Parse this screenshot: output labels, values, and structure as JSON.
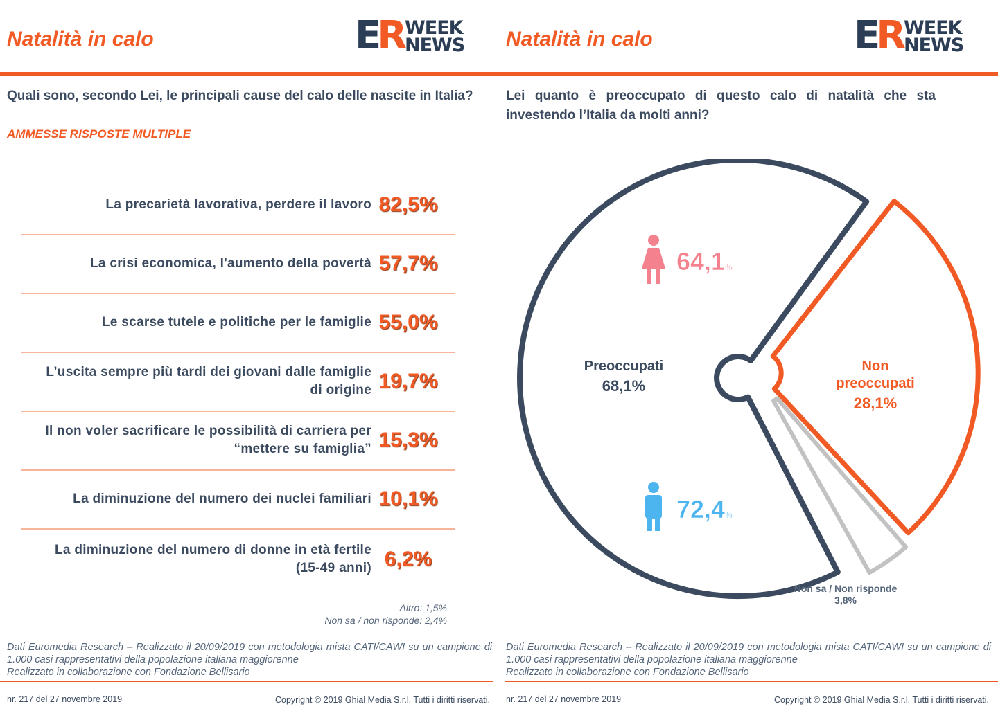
{
  "left": {
    "title": "Natalità in calo",
    "logo": {
      "er_e": "E",
      "er_r": "R",
      "line1": "WEEK",
      "line2": "NEWS"
    },
    "question": "Quali sono, secondo Lei, le principali cause del calo delle nascite in Italia?",
    "note": "AMMESSE RISPOSTE MULTIPLE",
    "extra": {
      "altro": "Altro: 1,5%",
      "nonsa": "Non sa / non risponde: 2,4%"
    },
    "source": {
      "line1": "Dati Euromedia Research – Realizzato il 20/09/2019 con metodologia mista CATI/CAWI su un campione di 1.000 casi rappresentativi della popolazione italiana maggiorenne",
      "line2": "Realizzato in collaborazione con Fondazione Bellisario"
    },
    "footer": {
      "issue": "nr. 217 del 27 novembre 2019",
      "copyright": "Copyright © 2019 Ghial Media S.r.l. Tutti i diritti riservati."
    }
  },
  "right": {
    "title": "Natalità in calo",
    "logo": {
      "er_e": "E",
      "er_r": "R",
      "line1": "WEEK",
      "line2": "NEWS"
    },
    "question": "Lei quanto è preoccupato di questo calo di natalità che sta investendo l’Italia da molti anni?",
    "female": {
      "value": "64,1",
      "unit": "%"
    },
    "male": {
      "value": "72,4",
      "unit": "%"
    },
    "source": {
      "line1": "Dati Euromedia Research – Realizzato il 20/09/2019 con metodologia mista CATI/CAWI su un campione di 1.000 casi rappresentativi della popolazione italiana maggiorenne",
      "line2": "Realizzato in collaborazione con Fondazione Bellisario"
    },
    "footer": {
      "issue": "nr. 217 del 27 novembre 2019",
      "copyright": "Copyright © 2019 Ghial Media S.r.l. Tutti i diritti riservati."
    }
  },
  "colors": {
    "orange": "#f15a24",
    "navy": "#3b4a5f",
    "grey": "#bfbfbf",
    "pink": "#f4828e",
    "blue": "#4cb4ee"
  },
  "chart_data": [
    {
      "type": "bar",
      "title": "Quali sono, secondo Lei, le principali cause del calo delle nascite in Italia?",
      "categories": [
        "La precarietà lavorativa, perdere il lavoro",
        "La crisi economica, l'aumento della povertà",
        "Le scarse tutele e politiche per le famiglie",
        "L’uscita sempre più tardi dei giovani dalle famiglie di origine",
        "Il non voler sacrificare le possibilità di carriera per “mettere su famiglia”",
        "La diminuzione del numero dei nuclei familiari",
        "La diminuzione del numero di donne in età fertile (15-49 anni)"
      ],
      "values": [
        82.5,
        57.7,
        55.0,
        19.7,
        15.3,
        10.1,
        6.2
      ],
      "labels": [
        "82,5%",
        "57,7%",
        "55,0%",
        "19,7%",
        "15,3%",
        "10,1%",
        "6,2%"
      ]
    },
    {
      "type": "pie",
      "title": "Lei quanto è preoccupato di questo calo di natalità che sta investendo l’Italia da molti anni?",
      "slices": [
        {
          "name": "Preoccupati",
          "value": 68.1,
          "label": "68,1%"
        },
        {
          "name": "Non preoccupati",
          "value": 28.1,
          "label": "28,1%"
        },
        {
          "name": "Non sa / Non risponde",
          "value": 3.8,
          "label": "3,8%"
        }
      ],
      "labels": {
        "preoccupati": "Preoccupati",
        "nonpre1": "Non",
        "nonpre2": "preoccupati",
        "nonsa": "Non sa / Non risponde"
      }
    }
  ]
}
